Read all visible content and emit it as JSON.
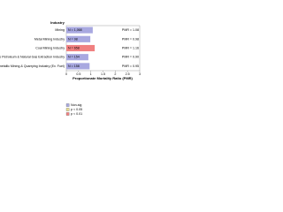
{
  "chart_data": {
    "type": "bar",
    "orientation": "horizontal",
    "title": "Industry",
    "x_label": "Proportionate Mortality Ratio (PMR)",
    "categories": [
      "Mining",
      "Metal Mining Industry",
      "Coal Mining Industry",
      "Crude Petroleum & Natural Gas Extraction Industry",
      "Nonmetallic Mining & Quarrying Industry (Ex. Fuel)"
    ],
    "values": [
      1.08,
      0.98,
      1.16,
      0.9,
      0.95
    ],
    "value_labels": [
      "PMR = 1.08",
      "PMR = 0.98",
      "PMR = 1.16",
      "PMR = 0.90",
      "PMR = 0.95"
    ],
    "n_labels": [
      "N = 1,068",
      "N = 98",
      "N = 658",
      "N = 154",
      "N = 158"
    ],
    "colors": [
      "#a8a8e0",
      "#a8a8e0",
      "#f08080",
      "#a8a8e0",
      "#a8a8e0"
    ],
    "xlim": [
      0,
      3
    ],
    "xticks": [
      0,
      0.5,
      1,
      1.5,
      2,
      2.5,
      3
    ],
    "legend": [
      {
        "label": "Non-sig",
        "color": "#a8a8e0"
      },
      {
        "label": "p < 0.05",
        "color": "#e8dc90"
      },
      {
        "label": "p < 0.01",
        "color": "#f08080"
      }
    ]
  }
}
